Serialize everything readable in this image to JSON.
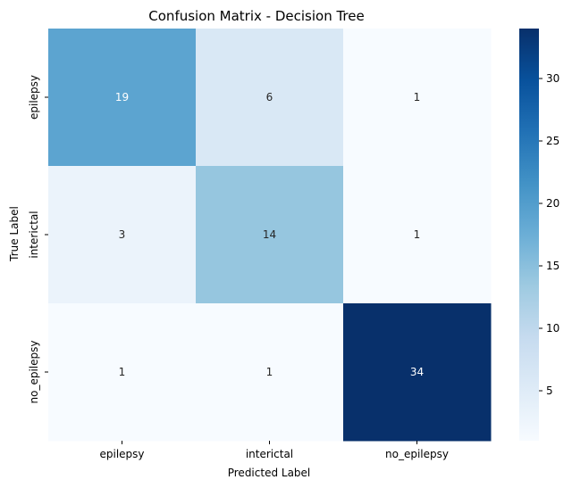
{
  "chart_data": {
    "type": "heatmap",
    "title": "Confusion Matrix - Decision Tree",
    "xlabel": "Predicted Label",
    "ylabel": "True Label",
    "x_categories": [
      "epilepsy",
      "interictal",
      "no_epilepsy"
    ],
    "y_categories": [
      "epilepsy",
      "interictal",
      "no_epilepsy"
    ],
    "values": [
      [
        19,
        6,
        1
      ],
      [
        3,
        14,
        1
      ],
      [
        1,
        1,
        34
      ]
    ],
    "colormap": "Blues",
    "colorbar": {
      "range": [
        1,
        34
      ],
      "ticks": [
        5,
        10,
        15,
        20,
        25,
        30
      ]
    },
    "annotations": true
  }
}
